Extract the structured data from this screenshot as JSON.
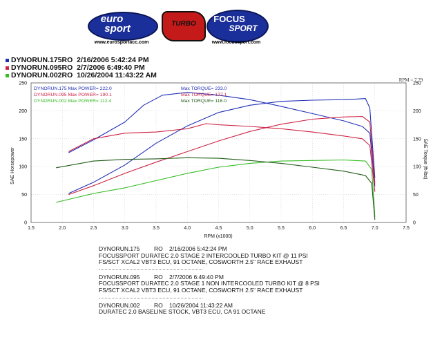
{
  "logos": {
    "left": {
      "text_top": "euro",
      "text_bottom": "sport",
      "url": "www.eurosportacc.com"
    },
    "center": {
      "text": "TURBO"
    },
    "right": {
      "text_top": "FOCUS",
      "text_bottom": "SPORT",
      "url": "www.focussport.com"
    }
  },
  "runs": [
    {
      "id": "DYNORUN.175RO",
      "date": "2/16/2006 5:42:24 PM",
      "color": "#1f2fb5"
    },
    {
      "id": "DYNORUN.095RO",
      "date": "2/7/2006 6:49:40 PM",
      "color": "#cc2244"
    },
    {
      "id": "DYNORUN.002RO",
      "date": "10/26/2004 11:43:22 AM",
      "color": "#33bb22"
    }
  ],
  "chart_data": {
    "type": "line",
    "title": "",
    "xlabel": "RPM (x1000)",
    "ylabel": "SAE Horsepower",
    "y2label": "SAE Torque (ft-lbs)",
    "xlim": [
      1.5,
      7.5
    ],
    "ylim": [
      0,
      250
    ],
    "xticks": [
      "1.5",
      "2.0",
      "2.5",
      "3.0",
      "3.5",
      "4.0",
      "4.5",
      "5.0",
      "5.5",
      "6.0",
      "6.5",
      "7.0",
      "7.5"
    ],
    "yticks": [
      "0",
      "50",
      "100",
      "150",
      "200",
      "250"
    ],
    "rpm_readout": "RPM = 7.79",
    "legend": {
      "power": [
        {
          "text": "DYNORUN.175   Max POWER= 222.0",
          "color": "#1f2fb5"
        },
        {
          "text": "DYNORUN.095   Max POWER= 190.1",
          "color": "#cc2244"
        },
        {
          "text": "DYNORUN.002   Max POWER= 112.4",
          "color": "#33bb22"
        }
      ],
      "torque": [
        {
          "text": "Max TORQUE= 233.0",
          "color": "#1f2fb5"
        },
        {
          "text": "Max TORQUE= 177.1",
          "color": "#cc2244"
        },
        {
          "text": "Max TORQUE= 116.0",
          "color": "#1f5a16"
        }
      ]
    },
    "series": [
      {
        "name": "DYNORUN.175 Power",
        "color": "#1f2fb5",
        "x": [
          2.1,
          2.5,
          3.0,
          3.5,
          4.0,
          4.5,
          5.0,
          5.5,
          6.0,
          6.5,
          6.7,
          6.85,
          6.92,
          7.0
        ],
        "y": [
          52,
          72,
          103,
          142,
          173,
          197,
          210,
          217,
          219,
          220,
          221,
          222,
          205,
          80
        ]
      },
      {
        "name": "DYNORUN.175 Torque",
        "color": "#1f2fb5",
        "x": [
          2.1,
          2.5,
          3.0,
          3.3,
          3.6,
          4.0,
          4.5,
          5.0,
          5.5,
          6.0,
          6.5,
          6.8,
          6.92,
          7.0
        ],
        "y": [
          125,
          148,
          180,
          210,
          228,
          233,
          228,
          220,
          208,
          195,
          182,
          172,
          160,
          65
        ]
      },
      {
        "name": "DYNORUN.095 Power",
        "color": "#cc2244",
        "x": [
          2.1,
          2.5,
          3.0,
          3.5,
          4.0,
          4.5,
          5.0,
          5.5,
          6.0,
          6.5,
          6.8,
          6.92,
          7.0
        ],
        "y": [
          50,
          66,
          88,
          108,
          127,
          146,
          163,
          176,
          185,
          189,
          190,
          180,
          70
        ]
      },
      {
        "name": "DYNORUN.095 Torque",
        "color": "#cc2244",
        "x": [
          2.1,
          2.5,
          3.0,
          3.5,
          4.0,
          4.3,
          4.5,
          5.0,
          5.5,
          6.0,
          6.5,
          6.8,
          6.92,
          7.0
        ],
        "y": [
          127,
          150,
          160,
          162,
          168,
          177,
          175,
          172,
          168,
          162,
          155,
          150,
          138,
          55
        ]
      },
      {
        "name": "DYNORUN.002 Power",
        "color": "#33bb22",
        "x": [
          1.9,
          2.5,
          3.0,
          3.5,
          4.0,
          4.5,
          5.0,
          5.5,
          6.0,
          6.5,
          6.85,
          6.95,
          7.0
        ],
        "y": [
          36,
          52,
          62,
          75,
          88,
          99,
          106,
          110,
          111,
          112,
          110,
          95,
          10
        ]
      },
      {
        "name": "DYNORUN.002 Torque",
        "color": "#1f5a16",
        "x": [
          1.9,
          2.5,
          3.0,
          3.5,
          4.0,
          4.5,
          5.0,
          5.5,
          6.0,
          6.5,
          6.85,
          6.95,
          7.0
        ],
        "y": [
          98,
          110,
          113,
          114,
          116,
          115,
          111,
          106,
          99,
          92,
          84,
          70,
          5
        ]
      }
    ]
  },
  "notes": [
    {
      "run": "DYNORUN.175",
      "code": "RO",
      "date": "2/16/2006 5:42:24 PM",
      "line1": "FOCUSSPORT DURATEC 2.0 STAGE 2 INTERCOOLED TURBO KIT @ 11 PSI",
      "line2": "FS/SCT XCAL2 VBT3 ECU, 91 OCTANE, COSWORTH 2.5\" RACE EXHAUST"
    },
    {
      "run": "DYNORUN.095",
      "code": "RO",
      "date": "2/7/2006 6:49:40 PM",
      "line1": "FOCUSSPORT DURATEC 2.0 STAGE 1 NON INTERCOOLED TURBO KIT @ 8 PSI",
      "line2": "FS/SCT XCAL2 VBT3 ECU, 91 OCTANE, COSWORTH 2.5\" RACE EXHAUST"
    },
    {
      "run": "DYNORUN.002",
      "code": "RO",
      "date": "10/26/2004 11:43:22 AM",
      "line1": "DURATEC 2.0 BASELINE STOCK, VBT3 ECU, CA 91 OCTANE",
      "line2": ""
    }
  ]
}
